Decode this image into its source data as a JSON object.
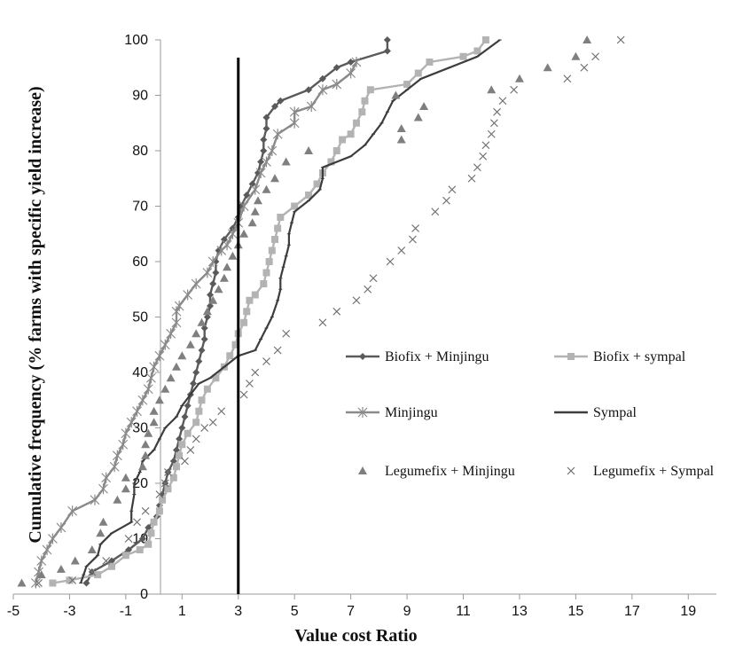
{
  "chart_data": {
    "type": "line",
    "xlabel": "Value cost Ratio",
    "ylabel": "Cumulative frequency (% farms with specific yield increase)",
    "xlim": [
      -5,
      20
    ],
    "ylim": [
      0,
      100
    ],
    "xticks": [
      -5,
      -3,
      -1,
      1,
      3,
      5,
      7,
      9,
      11,
      13,
      15,
      17,
      19
    ],
    "yticks": [
      0,
      10,
      20,
      30,
      40,
      50,
      60,
      70,
      80,
      90,
      100
    ],
    "reference_line_x": 3,
    "legend_position": "right",
    "series": [
      {
        "name": "Biofix + Minjingu",
        "color": "#5a5a5a",
        "style": "line-diamond",
        "points": [
          [
            -2.4,
            2
          ],
          [
            -2.2,
            4
          ],
          [
            -1.5,
            6
          ],
          [
            -0.9,
            8
          ],
          [
            -0.4,
            10
          ],
          [
            -0.2,
            12
          ],
          [
            0.1,
            14
          ],
          [
            0.2,
            16
          ],
          [
            0.3,
            18
          ],
          [
            0.4,
            20
          ],
          [
            0.5,
            22
          ],
          [
            0.7,
            24
          ],
          [
            0.8,
            26
          ],
          [
            0.9,
            28
          ],
          [
            1.0,
            30
          ],
          [
            1.1,
            32
          ],
          [
            1.2,
            34
          ],
          [
            1.3,
            36
          ],
          [
            1.4,
            38
          ],
          [
            1.5,
            40
          ],
          [
            1.6,
            42
          ],
          [
            1.7,
            44
          ],
          [
            1.8,
            46
          ],
          [
            1.8,
            48
          ],
          [
            1.9,
            50
          ],
          [
            2.0,
            52
          ],
          [
            2.0,
            54
          ],
          [
            2.1,
            56
          ],
          [
            2.2,
            58
          ],
          [
            2.2,
            60
          ],
          [
            2.3,
            62
          ],
          [
            2.5,
            64
          ],
          [
            2.8,
            66
          ],
          [
            3.0,
            68
          ],
          [
            3.1,
            70
          ],
          [
            3.3,
            72
          ],
          [
            3.5,
            74
          ],
          [
            3.7,
            76
          ],
          [
            3.8,
            78
          ],
          [
            3.9,
            80
          ],
          [
            3.9,
            82
          ],
          [
            4.0,
            84
          ],
          [
            4.0,
            86
          ],
          [
            4.3,
            88
          ],
          [
            4.5,
            89
          ],
          [
            5.5,
            91
          ],
          [
            6.0,
            93
          ],
          [
            6.5,
            95
          ],
          [
            7.0,
            96
          ],
          [
            8.3,
            98
          ],
          [
            8.3,
            100
          ]
        ]
      },
      {
        "name": "Biofix + sympal",
        "color": "#b3b3b3",
        "style": "line-square",
        "points": [
          [
            -3.6,
            2
          ],
          [
            -3.0,
            2.5
          ],
          [
            -2.0,
            3.5
          ],
          [
            -1.5,
            5
          ],
          [
            -1.0,
            7
          ],
          [
            -0.5,
            8
          ],
          [
            -0.2,
            9
          ],
          [
            -0.1,
            11
          ],
          [
            0.0,
            13
          ],
          [
            0.2,
            15
          ],
          [
            0.3,
            17
          ],
          [
            0.5,
            19
          ],
          [
            0.7,
            21
          ],
          [
            0.8,
            23
          ],
          [
            0.9,
            25
          ],
          [
            1.0,
            27
          ],
          [
            1.2,
            29
          ],
          [
            1.5,
            31
          ],
          [
            1.6,
            33
          ],
          [
            1.7,
            35
          ],
          [
            1.9,
            37
          ],
          [
            2.2,
            39
          ],
          [
            2.5,
            41
          ],
          [
            2.7,
            43
          ],
          [
            2.9,
            45
          ],
          [
            3.0,
            47
          ],
          [
            3.2,
            49
          ],
          [
            3.3,
            51
          ],
          [
            3.4,
            53
          ],
          [
            3.6,
            54
          ],
          [
            3.9,
            56
          ],
          [
            4.0,
            58
          ],
          [
            4.1,
            60
          ],
          [
            4.2,
            62
          ],
          [
            4.3,
            64
          ],
          [
            4.4,
            66
          ],
          [
            4.5,
            68
          ],
          [
            5.0,
            70
          ],
          [
            5.5,
            72
          ],
          [
            5.8,
            74
          ],
          [
            6.0,
            76
          ],
          [
            6.3,
            78
          ],
          [
            6.5,
            80
          ],
          [
            6.7,
            82
          ],
          [
            7.0,
            83
          ],
          [
            7.2,
            85
          ],
          [
            7.4,
            87
          ],
          [
            7.5,
            89
          ],
          [
            7.7,
            91
          ],
          [
            9.0,
            92
          ],
          [
            9.4,
            94
          ],
          [
            9.8,
            96
          ],
          [
            11.0,
            97
          ],
          [
            11.5,
            98
          ],
          [
            11.8,
            100
          ]
        ]
      },
      {
        "name": "Minjingu",
        "color": "#8a8a8a",
        "style": "line-star",
        "points": [
          [
            -4.2,
            2
          ],
          [
            -4.1,
            4
          ],
          [
            -4.0,
            6
          ],
          [
            -3.8,
            8
          ],
          [
            -3.6,
            10
          ],
          [
            -3.3,
            12
          ],
          [
            -2.9,
            15
          ],
          [
            -2.1,
            17
          ],
          [
            -1.8,
            19
          ],
          [
            -1.7,
            21
          ],
          [
            -1.4,
            23
          ],
          [
            -1.3,
            25
          ],
          [
            -1.1,
            27
          ],
          [
            -1.0,
            29
          ],
          [
            -0.8,
            31
          ],
          [
            -0.6,
            33
          ],
          [
            -0.4,
            35
          ],
          [
            -0.2,
            37
          ],
          [
            -0.1,
            39
          ],
          [
            0.0,
            41
          ],
          [
            0.2,
            43
          ],
          [
            0.4,
            45
          ],
          [
            0.6,
            47
          ],
          [
            0.8,
            49
          ],
          [
            0.8,
            51
          ],
          [
            0.9,
            52
          ],
          [
            1.2,
            54
          ],
          [
            1.5,
            56
          ],
          [
            1.9,
            58
          ],
          [
            2.1,
            60
          ],
          [
            2.4,
            62
          ],
          [
            2.6,
            63
          ],
          [
            2.8,
            65
          ],
          [
            3.0,
            67
          ],
          [
            3.2,
            70
          ],
          [
            3.6,
            73
          ],
          [
            3.8,
            76
          ],
          [
            4.0,
            78
          ],
          [
            4.2,
            80
          ],
          [
            4.4,
            83
          ],
          [
            5.0,
            85
          ],
          [
            5.0,
            87
          ],
          [
            5.6,
            88
          ],
          [
            6.0,
            91
          ],
          [
            6.5,
            92
          ],
          [
            7.0,
            94
          ],
          [
            7.2,
            96
          ]
        ]
      },
      {
        "name": "Sympal",
        "color": "#3d3d3d",
        "style": "line",
        "points": [
          [
            -2.6,
            2
          ],
          [
            -2.5,
            3.5
          ],
          [
            -2.4,
            5
          ],
          [
            -2.0,
            7
          ],
          [
            -1.9,
            9
          ],
          [
            -1.5,
            11
          ],
          [
            -0.8,
            13
          ],
          [
            -0.8,
            15
          ],
          [
            -0.7,
            18
          ],
          [
            -0.7,
            20
          ],
          [
            -0.5,
            22
          ],
          [
            -0.4,
            24
          ],
          [
            0.0,
            26
          ],
          [
            0.2,
            28
          ],
          [
            0.4,
            30
          ],
          [
            0.8,
            32
          ],
          [
            1.0,
            34
          ],
          [
            1.3,
            36
          ],
          [
            1.6,
            38
          ],
          [
            2.0,
            39
          ],
          [
            2.5,
            41
          ],
          [
            3.0,
            43
          ],
          [
            3.6,
            44
          ],
          [
            3.8,
            46
          ],
          [
            4.0,
            48
          ],
          [
            4.2,
            50
          ],
          [
            4.4,
            53
          ],
          [
            4.5,
            55
          ],
          [
            4.5,
            57
          ],
          [
            4.6,
            59
          ],
          [
            4.7,
            61
          ],
          [
            4.8,
            63
          ],
          [
            4.8,
            65
          ],
          [
            4.9,
            67
          ],
          [
            5.0,
            69
          ],
          [
            5.5,
            71
          ],
          [
            5.9,
            73
          ],
          [
            6.0,
            75
          ],
          [
            6.0,
            77
          ],
          [
            7.0,
            79
          ],
          [
            7.5,
            81
          ],
          [
            7.8,
            83
          ],
          [
            8.1,
            85
          ],
          [
            8.3,
            87
          ],
          [
            8.5,
            89
          ],
          [
            9.0,
            91
          ],
          [
            9.5,
            93
          ],
          [
            10.5,
            95
          ],
          [
            11.5,
            97
          ],
          [
            12.3,
            100
          ]
        ]
      },
      {
        "name": "Legumefix + Minjingu",
        "color": "#7f7f7f",
        "style": "triangle",
        "points": [
          [
            -4.7,
            2
          ],
          [
            -4.0,
            3.5
          ],
          [
            -3.3,
            4.5
          ],
          [
            -2.8,
            6
          ],
          [
            -2.2,
            8
          ],
          [
            -1.9,
            11
          ],
          [
            -1.8,
            13
          ],
          [
            -1.3,
            17
          ],
          [
            -1.0,
            19
          ],
          [
            -1.0,
            21
          ],
          [
            -0.4,
            23
          ],
          [
            -0.3,
            25
          ],
          [
            -0.3,
            27
          ],
          [
            -0.2,
            29
          ],
          [
            0.0,
            31
          ],
          [
            0.0,
            33
          ],
          [
            0.2,
            35
          ],
          [
            0.4,
            37
          ],
          [
            0.6,
            39
          ],
          [
            0.8,
            41
          ],
          [
            1.0,
            43
          ],
          [
            1.3,
            45
          ],
          [
            1.5,
            47
          ],
          [
            1.7,
            49
          ],
          [
            1.9,
            51
          ],
          [
            2.1,
            53
          ],
          [
            2.3,
            55
          ],
          [
            2.5,
            57
          ],
          [
            2.6,
            59
          ],
          [
            2.8,
            61
          ],
          [
            3.0,
            63
          ],
          [
            3.2,
            65
          ],
          [
            3.5,
            67
          ],
          [
            3.6,
            69
          ],
          [
            3.7,
            71
          ],
          [
            4.0,
            73
          ],
          [
            4.3,
            75
          ],
          [
            4.7,
            78
          ],
          [
            5.5,
            80
          ],
          [
            8.8,
            82
          ],
          [
            8.8,
            84
          ],
          [
            9.4,
            86
          ],
          [
            9.6,
            88
          ],
          [
            8.6,
            90
          ],
          [
            12.0,
            91
          ],
          [
            13.0,
            93
          ],
          [
            14.0,
            95
          ],
          [
            15.0,
            97
          ],
          [
            15.4,
            100
          ]
        ]
      },
      {
        "name": "Legumefix + Sympal",
        "color": "#6f6f6f",
        "style": "cross",
        "points": [
          [
            -4.1,
            2
          ],
          [
            -2.9,
            2.5
          ],
          [
            -2.2,
            4
          ],
          [
            -1.7,
            6
          ],
          [
            -0.9,
            10
          ],
          [
            -0.6,
            13
          ],
          [
            -0.3,
            15
          ],
          [
            0.2,
            18
          ],
          [
            0.4,
            20
          ],
          [
            0.5,
            22
          ],
          [
            1.1,
            24
          ],
          [
            1.3,
            26
          ],
          [
            1.5,
            28
          ],
          [
            1.8,
            30
          ],
          [
            2.1,
            31
          ],
          [
            2.4,
            33
          ],
          [
            3.2,
            36
          ],
          [
            3.4,
            38
          ],
          [
            3.6,
            40
          ],
          [
            4.0,
            42
          ],
          [
            4.4,
            44
          ],
          [
            4.7,
            47
          ],
          [
            6.0,
            49
          ],
          [
            6.5,
            51
          ],
          [
            7.2,
            53
          ],
          [
            7.6,
            55
          ],
          [
            7.8,
            57
          ],
          [
            8.4,
            60
          ],
          [
            8.8,
            62
          ],
          [
            9.2,
            64
          ],
          [
            9.3,
            66
          ],
          [
            10.0,
            69
          ],
          [
            10.4,
            71
          ],
          [
            10.6,
            73
          ],
          [
            11.3,
            75
          ],
          [
            11.5,
            77
          ],
          [
            11.7,
            79
          ],
          [
            11.8,
            81
          ],
          [
            12.0,
            83
          ],
          [
            12.1,
            85
          ],
          [
            12.2,
            87
          ],
          [
            12.4,
            89
          ],
          [
            12.8,
            91
          ],
          [
            14.7,
            93
          ],
          [
            15.3,
            95
          ],
          [
            15.7,
            97
          ],
          [
            16.6,
            100
          ]
        ]
      }
    ]
  }
}
